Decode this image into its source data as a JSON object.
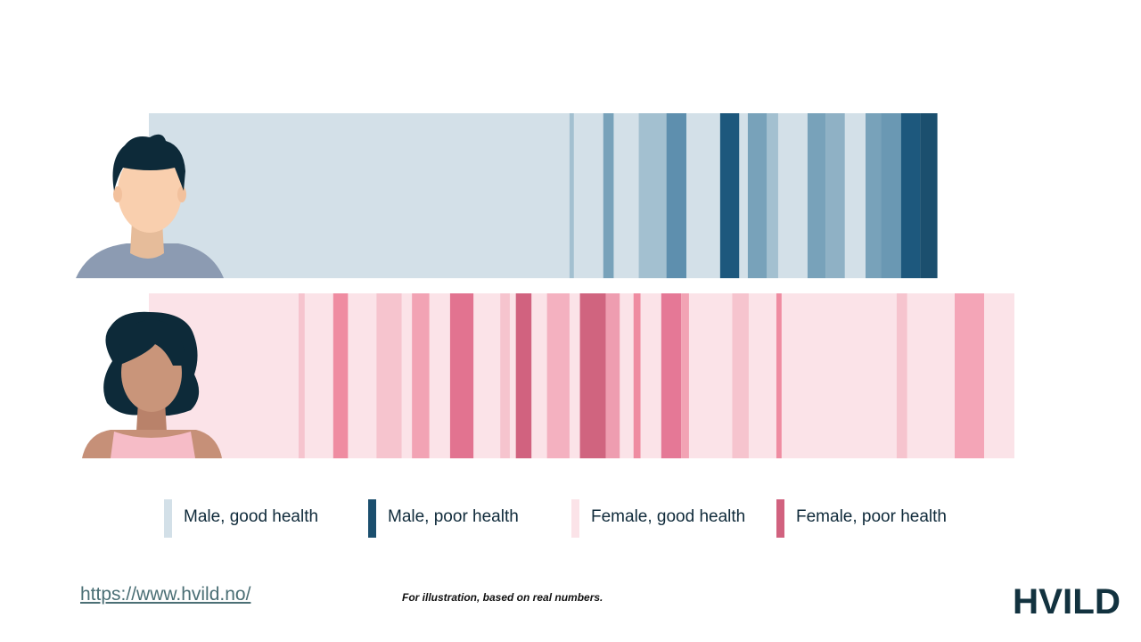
{
  "chart_data": {
    "type": "bar",
    "title": "",
    "xlabel": "",
    "ylabel": "",
    "x_range": [
      0,
      100
    ],
    "rows": [
      {
        "name": "Male",
        "avatar": "male-avatar",
        "length": 91.1,
        "base_category": "Male, good health",
        "segments": [
          {
            "start": 48.6,
            "end": 49.1,
            "color": "#a3c0d0"
          },
          {
            "start": 52.5,
            "end": 53.7,
            "color": "#78a2ba"
          },
          {
            "start": 56.6,
            "end": 59.8,
            "color": "#a3c0d0"
          },
          {
            "start": 59.8,
            "end": 62.1,
            "color": "#5e8fae"
          },
          {
            "start": 66.0,
            "end": 68.2,
            "color": "#1d587d"
          },
          {
            "start": 69.2,
            "end": 71.4,
            "color": "#78a2ba"
          },
          {
            "start": 71.4,
            "end": 72.7,
            "color": "#a3c0d0"
          },
          {
            "start": 76.1,
            "end": 78.2,
            "color": "#78a2ba"
          },
          {
            "start": 78.2,
            "end": 80.4,
            "color": "#8fb1c5"
          },
          {
            "start": 82.8,
            "end": 84.6,
            "color": "#78a2ba"
          },
          {
            "start": 84.6,
            "end": 86.9,
            "color": "#6a98b3"
          },
          {
            "start": 86.9,
            "end": 89.1,
            "color": "#1d587d"
          },
          {
            "start": 89.1,
            "end": 91.1,
            "color": "#1b4f6e"
          }
        ]
      },
      {
        "name": "Female",
        "avatar": "female-avatar",
        "length": 100,
        "base_category": "Female, good health",
        "segments": [
          {
            "start": 17.3,
            "end": 18.0,
            "color": "#f6c4ce"
          },
          {
            "start": 21.3,
            "end": 23.0,
            "color": "#ef8ca1"
          },
          {
            "start": 26.3,
            "end": 29.2,
            "color": "#f6c4ce"
          },
          {
            "start": 30.4,
            "end": 32.4,
            "color": "#f2a3b4"
          },
          {
            "start": 34.8,
            "end": 37.5,
            "color": "#e27390"
          },
          {
            "start": 40.6,
            "end": 41.7,
            "color": "#f6c4ce"
          },
          {
            "start": 42.4,
            "end": 44.2,
            "color": "#d1627f"
          },
          {
            "start": 46.0,
            "end": 48.6,
            "color": "#f4b1c0"
          },
          {
            "start": 49.8,
            "end": 52.8,
            "color": "#d0647f"
          },
          {
            "start": 52.8,
            "end": 54.4,
            "color": "#ee9db0"
          },
          {
            "start": 56.0,
            "end": 56.8,
            "color": "#ef8ca1"
          },
          {
            "start": 59.2,
            "end": 61.5,
            "color": "#e57896"
          },
          {
            "start": 61.5,
            "end": 62.4,
            "color": "#f2a3b4"
          },
          {
            "start": 67.4,
            "end": 69.3,
            "color": "#f6c4ce"
          },
          {
            "start": 72.5,
            "end": 73.1,
            "color": "#ef8ca1"
          },
          {
            "start": 86.4,
            "end": 87.6,
            "color": "#f6c4ce"
          },
          {
            "start": 93.1,
            "end": 96.5,
            "color": "#f4a5b7"
          }
        ]
      }
    ],
    "legend": [
      {
        "label": "Male, good health",
        "color": "#d3e0e8"
      },
      {
        "label": "Male, poor health",
        "color": "#1b4f6e"
      },
      {
        "label": "Female, good health",
        "color": "#fbe3e8"
      },
      {
        "label": "Female, poor health",
        "color": "#d1627f"
      }
    ],
    "legend_position": "bottom",
    "grid": false
  },
  "footer": {
    "link": "https://www.hvild.no/",
    "note": "For illustration, based on real numbers.",
    "logo_text": "HVILD"
  },
  "colors": {
    "male_base": "#d3e0e8",
    "female_base": "#fbe3e8",
    "logo": "#12323f",
    "link": "#4b6f75"
  }
}
